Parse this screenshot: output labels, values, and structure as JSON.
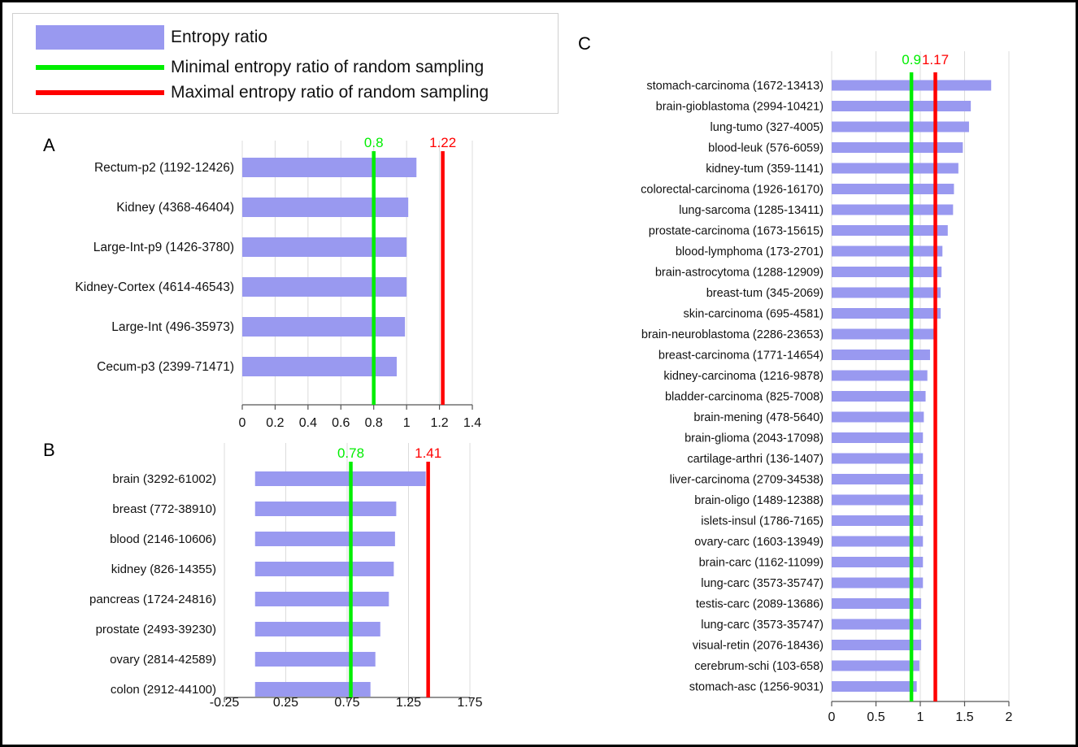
{
  "colors": {
    "bar": "#9999f0",
    "min_line": "#00ee00",
    "max_line": "#ff0000",
    "axis": "#555555",
    "grid": "#dcdcdc",
    "text": "#111111"
  },
  "legend": {
    "items": [
      {
        "label": "Entropy ratio",
        "color": "#9999f0",
        "shape": "box"
      },
      {
        "label": "Minimal entropy ratio of random sampling",
        "color": "#00ee00",
        "shape": "line"
      },
      {
        "label": "Maximal entropy ratio of random sampling",
        "color": "#ff0000",
        "shape": "line"
      }
    ]
  },
  "chart_data": [
    {
      "panel": "A",
      "type": "bar",
      "orientation": "horizontal",
      "categories": [
        "Rectum-p2 (1192-12426)",
        "Kidney (4368-46404)",
        "Large-Int-p9 (1426-3780)",
        "Kidney-Cortex (4614-46543)",
        "Large-Int (496-35973)",
        "Cecum-p3 (2399-71471)"
      ],
      "values": [
        1.06,
        1.01,
        1.0,
        1.0,
        0.99,
        0.94
      ],
      "xlim": [
        0,
        1.4
      ],
      "xticks": [
        "0",
        "0.2",
        "0.4",
        "0.6",
        "0.8",
        "1",
        "1.2",
        "1.4"
      ],
      "xtick_values": [
        0,
        0.2,
        0.4,
        0.6,
        0.8,
        1.0,
        1.2,
        1.4
      ],
      "grid": true,
      "min_line": {
        "value": 0.8,
        "label": "0.8"
      },
      "max_line": {
        "value": 1.22,
        "label": "1.22"
      }
    },
    {
      "panel": "B",
      "type": "bar",
      "orientation": "horizontal",
      "categories": [
        "brain (3292-61002)",
        "breast (772-38910)",
        "blood (2146-10606)",
        "kidney (826-14355)",
        "pancreas (1724-24816)",
        "prostate (2493-39230)",
        "ovary (2814-42589)",
        "colon (2912-44100)"
      ],
      "values": [
        1.39,
        1.15,
        1.14,
        1.13,
        1.09,
        1.02,
        0.98,
        0.94
      ],
      "xlim": [
        -0.25,
        1.75
      ],
      "xticks": [
        "-0.25",
        "0.25",
        "0.75",
        "1.25",
        "1.75"
      ],
      "xtick_values": [
        -0.25,
        0.25,
        0.75,
        1.25,
        1.75
      ],
      "bar_base": 0,
      "grid": true,
      "min_line": {
        "value": 0.78,
        "label": "0.78"
      },
      "max_line": {
        "value": 1.41,
        "label": "1.41"
      }
    },
    {
      "panel": "C",
      "type": "bar",
      "orientation": "horizontal",
      "categories": [
        "stomach-carcinoma (1672-13413)",
        "brain-gioblastoma (2994-10421)",
        "lung-tumo (327-4005)",
        "blood-leuk (576-6059)",
        "kidney-tum (359-1141)",
        "colorectal-carcinoma (1926-16170)",
        "lung-sarcoma (1285-13411)",
        "prostate-carcinoma (1673-15615)",
        "blood-lymphoma (173-2701)",
        "brain-astrocytoma (1288-12909)",
        "breast-tum (345-2069)",
        "skin-carcinoma (695-4581)",
        "brain-neuroblastoma (2286-23653)",
        "breast-carcinoma (1771-14654)",
        "kidney-carcinoma (1216-9878)",
        "bladder-carcinoma (825-7008)",
        "brain-mening (478-5640)",
        "brain-glioma (2043-17098)",
        "cartilage-arthri (136-1407)",
        "liver-carcinoma (2709-34538)",
        "brain-oligo (1489-12388)",
        "islets-insul (1786-7165)",
        "ovary-carc (1603-13949)",
        "brain-carc (1162-11099)",
        "lung-carc (3573-35747)",
        "testis-carc (2089-13686)",
        "lung-carc (3573-35747)",
        "visual-retin (2076-18436)",
        "cerebrum-schi (103-658)",
        "stomach-asc (1256-9031)"
      ],
      "values": [
        1.8,
        1.57,
        1.55,
        1.48,
        1.43,
        1.38,
        1.37,
        1.31,
        1.25,
        1.24,
        1.23,
        1.23,
        1.18,
        1.11,
        1.08,
        1.06,
        1.04,
        1.03,
        1.03,
        1.03,
        1.03,
        1.03,
        1.03,
        1.03,
        1.03,
        1.01,
        1.01,
        1.01,
        0.99,
        0.96
      ],
      "xlim": [
        0,
        2
      ],
      "xticks": [
        "0",
        "0.5",
        "1",
        "1.5",
        "2"
      ],
      "xtick_values": [
        0,
        0.5,
        1.0,
        1.5,
        2.0
      ],
      "grid": true,
      "min_line": {
        "value": 0.9,
        "label": "0.9"
      },
      "max_line": {
        "value": 1.17,
        "label": "1.17"
      }
    }
  ]
}
